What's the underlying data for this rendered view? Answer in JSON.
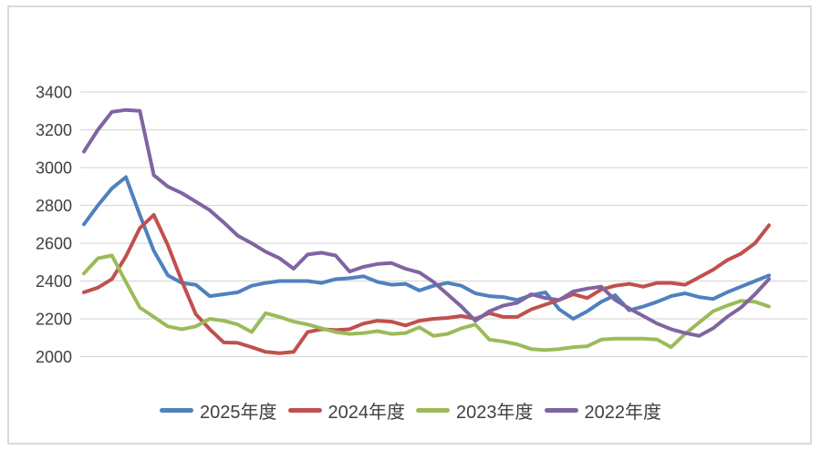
{
  "chart": {
    "background_color": "#FFFFFF",
    "frame_border_color": "#D9D9D9",
    "gridline_color": "#D9D9D9",
    "tick_label_color": "#404040",
    "legend_position": "bottom"
  },
  "chart_data": {
    "type": "line",
    "title": "",
    "xlabel": "",
    "ylabel": "",
    "x_tick_labels_visible": false,
    "x": "52-week index, points 1-50",
    "ylim": [
      2000,
      3400
    ],
    "yticks": [
      3400,
      3200,
      3000,
      2800,
      2600,
      2400,
      2200,
      2000
    ],
    "grid": true,
    "series": [
      {
        "name": "2025年度",
        "color": "#4F81BD",
        "values": [
          2700,
          2800,
          2890,
          2950,
          2750,
          2560,
          2430,
          2390,
          2380,
          2320,
          2330,
          2340,
          2375,
          2390,
          2400,
          2400,
          2400,
          2390,
          2410,
          2415,
          2425,
          2395,
          2380,
          2385,
          2350,
          2375,
          2390,
          2375,
          2335,
          2320,
          2315,
          2300,
          2325,
          2340,
          2250,
          2200,
          2240,
          2290,
          2325,
          2245,
          2265,
          2290,
          2320,
          2335,
          2315,
          2305,
          2340,
          2370,
          2400,
          2430
        ]
      },
      {
        "name": "2024年度",
        "color": "#C0504D",
        "values": [
          2340,
          2365,
          2410,
          2530,
          2680,
          2750,
          2590,
          2400,
          2225,
          2145,
          2075,
          2073,
          2050,
          2025,
          2018,
          2025,
          2130,
          2145,
          2140,
          2145,
          2175,
          2190,
          2185,
          2165,
          2190,
          2200,
          2205,
          2215,
          2200,
          2230,
          2210,
          2210,
          2250,
          2275,
          2300,
          2330,
          2310,
          2355,
          2375,
          2385,
          2370,
          2390,
          2390,
          2380,
          2420,
          2460,
          2510,
          2545,
          2600,
          2695
        ]
      },
      {
        "name": "2023年度",
        "color": "#9BBB59",
        "values": [
          2440,
          2520,
          2535,
          2395,
          2260,
          2210,
          2160,
          2145,
          2160,
          2200,
          2190,
          2170,
          2130,
          2230,
          2210,
          2185,
          2170,
          2150,
          2130,
          2120,
          2125,
          2135,
          2120,
          2125,
          2155,
          2110,
          2120,
          2150,
          2170,
          2090,
          2080,
          2065,
          2040,
          2035,
          2040,
          2050,
          2055,
          2090,
          2095,
          2095,
          2095,
          2090,
          2050,
          2120,
          2180,
          2240,
          2270,
          2295,
          2290,
          2265
        ]
      },
      {
        "name": "2022年度",
        "color": "#8064A2",
        "values": [
          3085,
          3200,
          3295,
          3305,
          3300,
          2960,
          2900,
          2865,
          2820,
          2775,
          2710,
          2640,
          2600,
          2555,
          2520,
          2465,
          2540,
          2550,
          2535,
          2450,
          2475,
          2490,
          2495,
          2465,
          2445,
          2395,
          2330,
          2265,
          2190,
          2240,
          2270,
          2285,
          2330,
          2310,
          2300,
          2345,
          2360,
          2370,
          2300,
          2255,
          2215,
          2175,
          2145,
          2125,
          2110,
          2150,
          2210,
          2260,
          2330,
          2410
        ]
      }
    ]
  }
}
